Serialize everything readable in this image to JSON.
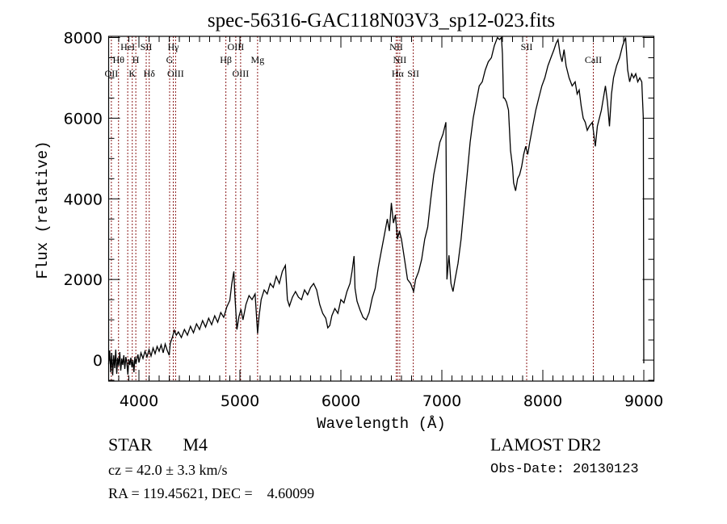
{
  "chart_data": {
    "type": "line",
    "title": "spec-56316-GAC118N03V3_sp12-023.fits",
    "xlabel": "Wavelength (Å)",
    "ylabel": "Flux (relative)",
    "xlim": [
      3700,
      9100
    ],
    "ylim": [
      -520,
      8030
    ],
    "grid": false,
    "xticks": [
      4000,
      5000,
      6000,
      7000,
      8000,
      9000
    ],
    "xtick_labels": [
      "4000",
      "5000",
      "6000",
      "7000",
      "8000",
      "9000"
    ],
    "yticks": [
      0,
      2000,
      4000,
      6000,
      8000
    ],
    "ytick_labels": [
      "0",
      "2000",
      "4000",
      "6000",
      "8000"
    ],
    "x_minor_step": 100,
    "y_minor_step": 500,
    "series": [
      {
        "name": "spectrum",
        "color": "#000000",
        "points": [
          [
            3700,
            -100
          ],
          [
            3710,
            240
          ],
          [
            3720,
            -300
          ],
          [
            3730,
            180
          ],
          [
            3740,
            -380
          ],
          [
            3750,
            120
          ],
          [
            3760,
            -200
          ],
          [
            3770,
            260
          ],
          [
            3780,
            -340
          ],
          [
            3790,
            60
          ],
          [
            3800,
            -140
          ],
          [
            3810,
            200
          ],
          [
            3820,
            -260
          ],
          [
            3830,
            40
          ],
          [
            3840,
            -120
          ],
          [
            3850,
            120
          ],
          [
            3860,
            -220
          ],
          [
            3870,
            80
          ],
          [
            3880,
            -60
          ],
          [
            3890,
            -360
          ],
          [
            3900,
            20
          ],
          [
            3910,
            -120
          ],
          [
            3920,
            60
          ],
          [
            3930,
            -180
          ],
          [
            3940,
            0
          ],
          [
            3950,
            -300
          ],
          [
            3960,
            80
          ],
          [
            3970,
            -100
          ],
          [
            3980,
            40
          ],
          [
            3990,
            140
          ],
          [
            4000,
            -60
          ],
          [
            4020,
            180
          ],
          [
            4040,
            40
          ],
          [
            4060,
            220
          ],
          [
            4080,
            80
          ],
          [
            4100,
            260
          ],
          [
            4120,
            100
          ],
          [
            4140,
            300
          ],
          [
            4160,
            160
          ],
          [
            4180,
            340
          ],
          [
            4200,
            220
          ],
          [
            4220,
            380
          ],
          [
            4240,
            180
          ],
          [
            4260,
            400
          ],
          [
            4280,
            240
          ],
          [
            4300,
            120
          ],
          [
            4310,
            420
          ],
          [
            4330,
            560
          ],
          [
            4350,
            740
          ],
          [
            4370,
            620
          ],
          [
            4390,
            700
          ],
          [
            4420,
            560
          ],
          [
            4450,
            760
          ],
          [
            4480,
            620
          ],
          [
            4510,
            840
          ],
          [
            4540,
            680
          ],
          [
            4570,
            900
          ],
          [
            4600,
            760
          ],
          [
            4630,
            980
          ],
          [
            4660,
            820
          ],
          [
            4690,
            1040
          ],
          [
            4720,
            880
          ],
          [
            4750,
            1100
          ],
          [
            4780,
            940
          ],
          [
            4810,
            1180
          ],
          [
            4840,
            1060
          ],
          [
            4870,
            1320
          ],
          [
            4900,
            1480
          ],
          [
            4920,
            1900
          ],
          [
            4940,
            2200
          ],
          [
            4950,
            1600
          ],
          [
            4970,
            760
          ],
          [
            4990,
            1080
          ],
          [
            5010,
            1260
          ],
          [
            5030,
            1000
          ],
          [
            5060,
            1380
          ],
          [
            5090,
            1600
          ],
          [
            5120,
            1500
          ],
          [
            5150,
            1640
          ],
          [
            5175,
            660
          ],
          [
            5190,
            1100
          ],
          [
            5210,
            1500
          ],
          [
            5240,
            1740
          ],
          [
            5270,
            1640
          ],
          [
            5300,
            1900
          ],
          [
            5330,
            1800
          ],
          [
            5360,
            2080
          ],
          [
            5390,
            1900
          ],
          [
            5420,
            2200
          ],
          [
            5450,
            2350
          ],
          [
            5470,
            1500
          ],
          [
            5490,
            1340
          ],
          [
            5520,
            1560
          ],
          [
            5550,
            1700
          ],
          [
            5580,
            1560
          ],
          [
            5610,
            1500
          ],
          [
            5640,
            1740
          ],
          [
            5670,
            1620
          ],
          [
            5700,
            1800
          ],
          [
            5730,
            1900
          ],
          [
            5760,
            1740
          ],
          [
            5790,
            1380
          ],
          [
            5820,
            1160
          ],
          [
            5850,
            1040
          ],
          [
            5870,
            800
          ],
          [
            5890,
            860
          ],
          [
            5910,
            1100
          ],
          [
            5940,
            1280
          ],
          [
            5970,
            1160
          ],
          [
            6000,
            1500
          ],
          [
            6030,
            1420
          ],
          [
            6060,
            1700
          ],
          [
            6090,
            1900
          ],
          [
            6110,
            2200
          ],
          [
            6130,
            2580
          ],
          [
            6140,
            1780
          ],
          [
            6160,
            1460
          ],
          [
            6190,
            1240
          ],
          [
            6220,
            1060
          ],
          [
            6250,
            1000
          ],
          [
            6280,
            1180
          ],
          [
            6310,
            1540
          ],
          [
            6340,
            1780
          ],
          [
            6370,
            2300
          ],
          [
            6400,
            2700
          ],
          [
            6430,
            3100
          ],
          [
            6460,
            3500
          ],
          [
            6480,
            3200
          ],
          [
            6500,
            3900
          ],
          [
            6520,
            3400
          ],
          [
            6540,
            3600
          ],
          [
            6560,
            3000
          ],
          [
            6580,
            3200
          ],
          [
            6600,
            3000
          ],
          [
            6630,
            2500
          ],
          [
            6660,
            2000
          ],
          [
            6690,
            1900
          ],
          [
            6720,
            1700
          ],
          [
            6740,
            2000
          ],
          [
            6770,
            2200
          ],
          [
            6800,
            2500
          ],
          [
            6830,
            3000
          ],
          [
            6860,
            3300
          ],
          [
            6890,
            4000
          ],
          [
            6920,
            4600
          ],
          [
            6950,
            5000
          ],
          [
            6980,
            5400
          ],
          [
            7010,
            5600
          ],
          [
            7040,
            5900
          ],
          [
            7050,
            2000
          ],
          [
            7070,
            2600
          ],
          [
            7090,
            1900
          ],
          [
            7110,
            1700
          ],
          [
            7130,
            2000
          ],
          [
            7160,
            2400
          ],
          [
            7190,
            3000
          ],
          [
            7220,
            3800
          ],
          [
            7250,
            4600
          ],
          [
            7280,
            5400
          ],
          [
            7310,
            6000
          ],
          [
            7340,
            6400
          ],
          [
            7370,
            6800
          ],
          [
            7400,
            6900
          ],
          [
            7430,
            7200
          ],
          [
            7460,
            7400
          ],
          [
            7490,
            7500
          ],
          [
            7520,
            7800
          ],
          [
            7550,
            8000
          ],
          [
            7570,
            7950
          ],
          [
            7590,
            8000
          ],
          [
            7600,
            7600
          ],
          [
            7610,
            6500
          ],
          [
            7620,
            6500
          ],
          [
            7640,
            6400
          ],
          [
            7660,
            6200
          ],
          [
            7680,
            5200
          ],
          [
            7700,
            4800
          ],
          [
            7710,
            4400
          ],
          [
            7730,
            4200
          ],
          [
            7750,
            4500
          ],
          [
            7770,
            4600
          ],
          [
            7790,
            4800
          ],
          [
            7810,
            5100
          ],
          [
            7830,
            5300
          ],
          [
            7850,
            5100
          ],
          [
            7870,
            5400
          ],
          [
            7900,
            5800
          ],
          [
            7930,
            6200
          ],
          [
            7960,
            6500
          ],
          [
            7990,
            6800
          ],
          [
            8020,
            7000
          ],
          [
            8050,
            7300
          ],
          [
            8080,
            7500
          ],
          [
            8110,
            7700
          ],
          [
            8130,
            7850
          ],
          [
            8150,
            7950
          ],
          [
            8170,
            7600
          ],
          [
            8190,
            7400
          ],
          [
            8210,
            7700
          ],
          [
            8230,
            7300
          ],
          [
            8260,
            7000
          ],
          [
            8290,
            6800
          ],
          [
            8320,
            6900
          ],
          [
            8340,
            6600
          ],
          [
            8360,
            6700
          ],
          [
            8380,
            6300
          ],
          [
            8400,
            6000
          ],
          [
            8420,
            5900
          ],
          [
            8440,
            5700
          ],
          [
            8460,
            5800
          ],
          [
            8490,
            5900
          ],
          [
            8500,
            5700
          ],
          [
            8520,
            5300
          ],
          [
            8540,
            5800
          ],
          [
            8560,
            6000
          ],
          [
            8580,
            6200
          ],
          [
            8600,
            6500
          ],
          [
            8620,
            6800
          ],
          [
            8640,
            6400
          ],
          [
            8660,
            5800
          ],
          [
            8680,
            6600
          ],
          [
            8700,
            7000
          ],
          [
            8730,
            7300
          ],
          [
            8760,
            7500
          ],
          [
            8790,
            7800
          ],
          [
            8820,
            8000
          ],
          [
            8840,
            7200
          ],
          [
            8860,
            6900
          ],
          [
            8880,
            7100
          ],
          [
            8900,
            7000
          ],
          [
            8920,
            7100
          ],
          [
            8940,
            6900
          ],
          [
            8960,
            7000
          ],
          [
            8980,
            6900
          ],
          [
            8995,
            6000
          ],
          [
            9000,
            -80
          ]
        ]
      }
    ],
    "line_markers": [
      {
        "label": "OII",
        "wavelength": 3727,
        "row": 3
      },
      {
        "label": "Hθ",
        "wavelength": 3798,
        "row": 2
      },
      {
        "label": "HeI",
        "wavelength": 3889,
        "row": 1
      },
      {
        "label": "K",
        "wavelength": 3934,
        "row": 3
      },
      {
        "label": "H",
        "wavelength": 3969,
        "row": 2
      },
      {
        "label": "SII",
        "wavelength": 4072,
        "row": 1
      },
      {
        "label": "Hδ",
        "wavelength": 4102,
        "row": 3
      },
      {
        "label": "G",
        "wavelength": 4304,
        "row": 2
      },
      {
        "label": "Hγ",
        "wavelength": 4340,
        "row": 1
      },
      {
        "label": "OIII",
        "wavelength": 4363,
        "row": 3
      },
      {
        "label": "Hβ",
        "wavelength": 4861,
        "row": 2
      },
      {
        "label": "OIII",
        "wavelength": 4959,
        "row": 1
      },
      {
        "label": "OIII",
        "wavelength": 5007,
        "row": 3
      },
      {
        "label": "Mg",
        "wavelength": 5175,
        "row": 2
      },
      {
        "label": "NII",
        "wavelength": 6548,
        "row": 1
      },
      {
        "label": "Hα",
        "wavelength": 6563,
        "row": 3
      },
      {
        "label": "NII",
        "wavelength": 6583,
        "row": 2
      },
      {
        "label": "SII",
        "wavelength": 6717,
        "row": 3
      },
      {
        "label": "SII",
        "wavelength": 7840,
        "row": 1
      },
      {
        "label": "CaII",
        "wavelength": 8500,
        "row": 2
      }
    ],
    "marker_color": "#8b1a1a"
  },
  "info": {
    "class_label": "STAR",
    "subclass": "M4",
    "redshift_line": "cz = 42.0 ± 3.3 km/s",
    "coords_line": "RA = 119.45621, DEC =    4.60099",
    "survey": "LAMOST DR2",
    "obs_date_line": "Obs-Date: 20130123"
  }
}
